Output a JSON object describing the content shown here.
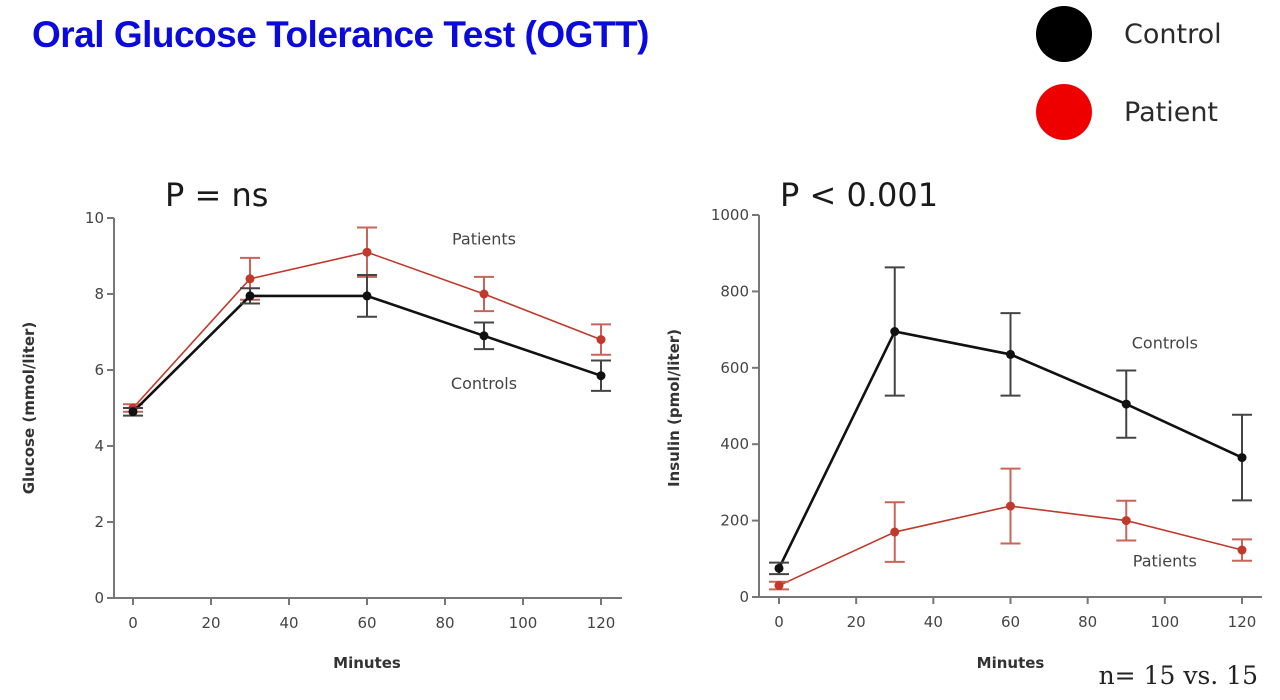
{
  "page": {
    "title": "Oral Glucose Tolerance Test (OGTT)",
    "footnote": "n= 15 vs. 15"
  },
  "legend": {
    "items": [
      {
        "label": "Control",
        "color": "#000000"
      },
      {
        "label": "Patient",
        "color": "#ee0000"
      }
    ]
  },
  "colors": {
    "control": "#111111",
    "patient": "#c0392b",
    "axis": "#777777"
  },
  "chart_data": [
    {
      "type": "line",
      "annotation": "P = ns",
      "xlabel": "Minutes",
      "ylabel": "Glucose (mmol/liter)",
      "xlim": [
        0,
        120
      ],
      "ylim": [
        0,
        10
      ],
      "xticks": [
        0,
        20,
        40,
        60,
        80,
        100,
        120
      ],
      "yticks": [
        0,
        2,
        4,
        6,
        8,
        10
      ],
      "grid": false,
      "x": [
        0,
        30,
        60,
        90,
        120
      ],
      "series": [
        {
          "name": "Patients",
          "key": "patient",
          "values": [
            5.0,
            8.4,
            9.1,
            8.0,
            6.8
          ],
          "error": [
            0.1,
            0.55,
            0.65,
            0.45,
            0.4
          ],
          "label_at": [
            90,
            9.3
          ]
        },
        {
          "name": "Controls",
          "key": "control",
          "values": [
            4.9,
            7.95,
            7.95,
            6.9,
            5.85
          ],
          "error": [
            0.1,
            0.2,
            0.55,
            0.35,
            0.4
          ],
          "label_at": [
            90,
            5.5
          ]
        }
      ]
    },
    {
      "type": "line",
      "annotation": "P < 0.001",
      "xlabel": "Minutes",
      "ylabel": "Insulin (pmol/liter)",
      "xlim": [
        0,
        120
      ],
      "ylim": [
        0,
        1000
      ],
      "xticks": [
        0,
        20,
        40,
        60,
        80,
        100,
        120
      ],
      "yticks": [
        0,
        200,
        400,
        600,
        800,
        1000
      ],
      "grid": false,
      "x": [
        0,
        30,
        60,
        90,
        120
      ],
      "series": [
        {
          "name": "Controls",
          "key": "control",
          "values": [
            75,
            695,
            635,
            505,
            365
          ],
          "error": [
            15,
            168,
            108,
            88,
            112
          ],
          "label_at": [
            100,
            650
          ]
        },
        {
          "name": "Patients",
          "key": "patient",
          "values": [
            30,
            170,
            238,
            200,
            123
          ],
          "error": [
            10,
            78,
            98,
            52,
            28
          ],
          "label_at": [
            100,
            80
          ]
        }
      ]
    }
  ]
}
